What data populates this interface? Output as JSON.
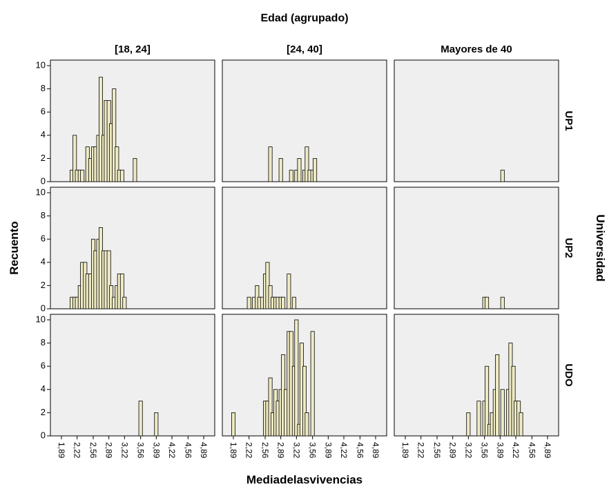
{
  "chart_data": {
    "type": "bar",
    "column_title": "Edad (agrupado)",
    "row_title": "Universidad",
    "xlabel": "Mediadelasvivencias",
    "ylabel": "Recuento",
    "columns": [
      "[18, 24]",
      "[24, 40]",
      "Mayores de 40"
    ],
    "rows": [
      "UP1",
      "UP2",
      "UDO"
    ],
    "x_ticks": [
      "1,89",
      "2,22",
      "2,56",
      "2,89",
      "3,22",
      "3,56",
      "3,89",
      "4,22",
      "4,56",
      "4,89"
    ],
    "x_range": [
      1.89,
      4.89
    ],
    "ylim": [
      0,
      10
    ],
    "y_ticks": [
      0,
      2,
      4,
      6,
      8,
      10
    ],
    "panels": [
      {
        "row": "UP1",
        "column": "[18, 24]",
        "bars": [
          [
            2.11,
            1
          ],
          [
            2.17,
            4
          ],
          [
            2.22,
            1
          ],
          [
            2.28,
            1
          ],
          [
            2.33,
            1
          ],
          [
            2.44,
            3
          ],
          [
            2.5,
            2
          ],
          [
            2.56,
            3
          ],
          [
            2.61,
            3
          ],
          [
            2.67,
            4
          ],
          [
            2.72,
            9
          ],
          [
            2.78,
            4
          ],
          [
            2.83,
            7
          ],
          [
            2.89,
            7
          ],
          [
            2.94,
            5
          ],
          [
            3.0,
            8
          ],
          [
            3.06,
            3
          ],
          [
            3.11,
            1
          ],
          [
            3.17,
            1
          ],
          [
            3.44,
            2
          ]
        ]
      },
      {
        "row": "UP1",
        "column": "[24, 40]",
        "bars": [
          [
            2.67,
            3
          ],
          [
            2.89,
            2
          ],
          [
            3.11,
            1
          ],
          [
            3.22,
            1
          ],
          [
            3.28,
            2
          ],
          [
            3.39,
            1
          ],
          [
            3.44,
            3
          ],
          [
            3.5,
            1
          ],
          [
            3.56,
            1
          ],
          [
            3.61,
            2
          ]
        ]
      },
      {
        "row": "UP1",
        "column": "Mayores de 40",
        "bars": [
          [
            3.94,
            1
          ]
        ]
      },
      {
        "row": "UP2",
        "column": "[18, 24]",
        "bars": [
          [
            2.11,
            1
          ],
          [
            2.17,
            1
          ],
          [
            2.22,
            1
          ],
          [
            2.28,
            2
          ],
          [
            2.33,
            4
          ],
          [
            2.39,
            4
          ],
          [
            2.44,
            3
          ],
          [
            2.5,
            3
          ],
          [
            2.56,
            6
          ],
          [
            2.61,
            5
          ],
          [
            2.67,
            6
          ],
          [
            2.72,
            7
          ],
          [
            2.78,
            5
          ],
          [
            2.83,
            5
          ],
          [
            2.89,
            5
          ],
          [
            2.94,
            2
          ],
          [
            3.0,
            1
          ],
          [
            3.06,
            2
          ],
          [
            3.11,
            3
          ],
          [
            3.17,
            3
          ],
          [
            3.22,
            1
          ]
        ]
      },
      {
        "row": "UP2",
        "column": "[24, 40]",
        "bars": [
          [
            2.22,
            1
          ],
          [
            2.33,
            1
          ],
          [
            2.39,
            2
          ],
          [
            2.44,
            1
          ],
          [
            2.5,
            1
          ],
          [
            2.56,
            3
          ],
          [
            2.61,
            4
          ],
          [
            2.67,
            2
          ],
          [
            2.72,
            1
          ],
          [
            2.78,
            1
          ],
          [
            2.83,
            1
          ],
          [
            2.89,
            1
          ],
          [
            2.94,
            1
          ],
          [
            3.06,
            3
          ],
          [
            3.17,
            1
          ]
        ]
      },
      {
        "row": "UP2",
        "column": "Mayores de 40",
        "bars": [
          [
            3.56,
            1
          ],
          [
            3.61,
            1
          ],
          [
            3.94,
            1
          ]
        ]
      },
      {
        "row": "UDO",
        "column": "[18, 24]",
        "bars": [
          [
            3.56,
            3
          ],
          [
            3.89,
            2
          ]
        ]
      },
      {
        "row": "UDO",
        "column": "[24, 40]",
        "bars": [
          [
            1.89,
            2
          ],
          [
            2.56,
            3
          ],
          [
            2.61,
            3
          ],
          [
            2.67,
            5
          ],
          [
            2.72,
            2
          ],
          [
            2.78,
            4
          ],
          [
            2.83,
            3
          ],
          [
            2.89,
            4
          ],
          [
            2.94,
            7
          ],
          [
            3.0,
            4
          ],
          [
            3.06,
            9
          ],
          [
            3.11,
            9
          ],
          [
            3.17,
            6
          ],
          [
            3.22,
            10
          ],
          [
            3.28,
            1
          ],
          [
            3.33,
            8
          ],
          [
            3.39,
            6
          ],
          [
            3.44,
            2
          ],
          [
            3.56,
            9
          ]
        ]
      },
      {
        "row": "UDO",
        "column": "Mayores de 40",
        "bars": [
          [
            3.22,
            2
          ],
          [
            3.44,
            3
          ],
          [
            3.56,
            3
          ],
          [
            3.61,
            6
          ],
          [
            3.67,
            1
          ],
          [
            3.72,
            2
          ],
          [
            3.78,
            4
          ],
          [
            3.83,
            7
          ],
          [
            3.94,
            4
          ],
          [
            4.06,
            4
          ],
          [
            4.11,
            8
          ],
          [
            4.17,
            6
          ],
          [
            4.22,
            3
          ],
          [
            4.28,
            3
          ],
          [
            4.33,
            2
          ]
        ]
      }
    ]
  }
}
